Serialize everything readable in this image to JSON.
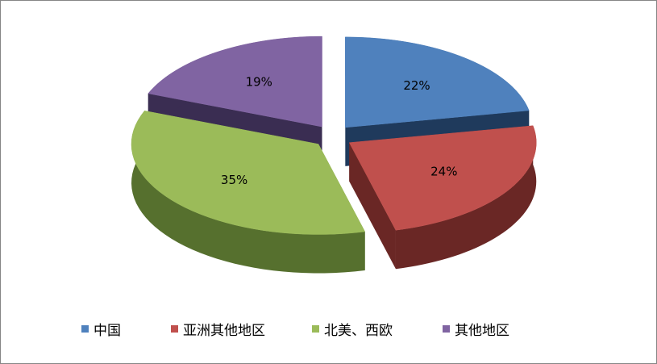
{
  "chart_data": {
    "type": "pie",
    "style": "3d-exploded",
    "categories": [
      "中国",
      "亚洲其他地区",
      "北美、西欧",
      "其他地区"
    ],
    "values": [
      22,
      24,
      35,
      19
    ],
    "labels": [
      "22%",
      "24%",
      "35%",
      "19%"
    ],
    "colors": [
      "#4F81BD",
      "#C0504D",
      "#9BBB59",
      "#8064A2"
    ],
    "side_colors": [
      "#1F3A5C",
      "#6A2725",
      "#56702E",
      "#3A2D52"
    ],
    "legend_position": "bottom"
  }
}
